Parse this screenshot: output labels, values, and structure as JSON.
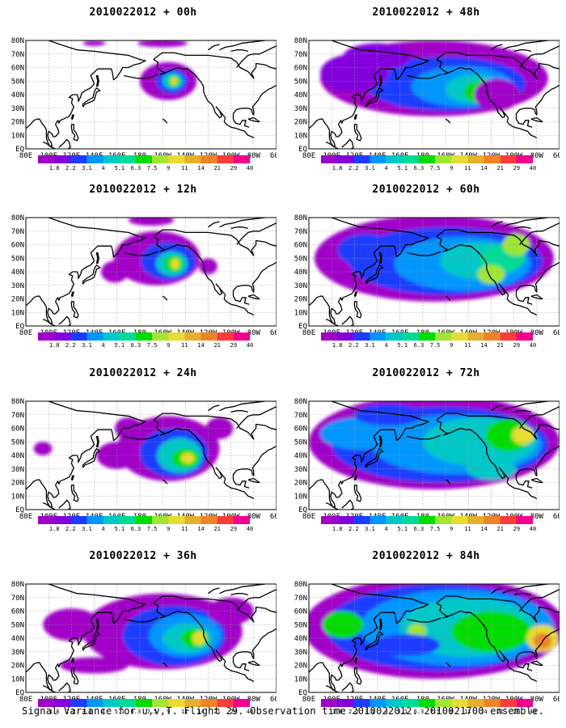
{
  "caption": "Signal Variance for u,v,T. Flight 29. Observation time 2010022012. 2010021700 ensemble.",
  "panels": [
    {
      "title": "2010022012 + 00h",
      "column": 0,
      "row": 0,
      "lead_hours": 0
    },
    {
      "title": "2010022012 + 12h",
      "column": 0,
      "row": 1,
      "lead_hours": 12
    },
    {
      "title": "2010022012 + 24h",
      "column": 0,
      "row": 2,
      "lead_hours": 24
    },
    {
      "title": "2010022012 + 36h",
      "column": 0,
      "row": 3,
      "lead_hours": 36
    },
    {
      "title": "2010022012 + 48h",
      "column": 1,
      "row": 0,
      "lead_hours": 48
    },
    {
      "title": "2010022012 + 60h",
      "column": 1,
      "row": 1,
      "lead_hours": 60
    },
    {
      "title": "2010022012 + 72h",
      "column": 1,
      "row": 2,
      "lead_hours": 72
    },
    {
      "title": "2010022012 + 84h",
      "column": 1,
      "row": 3,
      "lead_hours": 84
    }
  ],
  "lon_labels": [
    "80E",
    "100E",
    "120E",
    "140E",
    "160E",
    "180",
    "160W",
    "140W",
    "120W",
    "100W",
    "80W",
    "60W"
  ],
  "lat_labels": [
    "EQ",
    "10N",
    "20N",
    "30N",
    "40N",
    "50N",
    "60N",
    "70N",
    "80N"
  ],
  "colorbar": {
    "labels": [
      "1.8",
      "2.2",
      "3.1",
      "4",
      "5.1",
      "6.3",
      "7.5",
      "9",
      "11",
      "14",
      "21",
      "29",
      "40"
    ],
    "colors": [
      "#a000c8",
      "#8200dc",
      "#1e3cff",
      "#0096ff",
      "#00c8c8",
      "#00dc96",
      "#00dc00",
      "#a0e632",
      "#e6dc32",
      "#e6af2d",
      "#f08228",
      "#fa3c3c",
      "#f0008c"
    ]
  },
  "map_colors": {
    "coast": "#000000",
    "grid": "#9a9a9a",
    "land_fill": "#ffffff"
  }
}
